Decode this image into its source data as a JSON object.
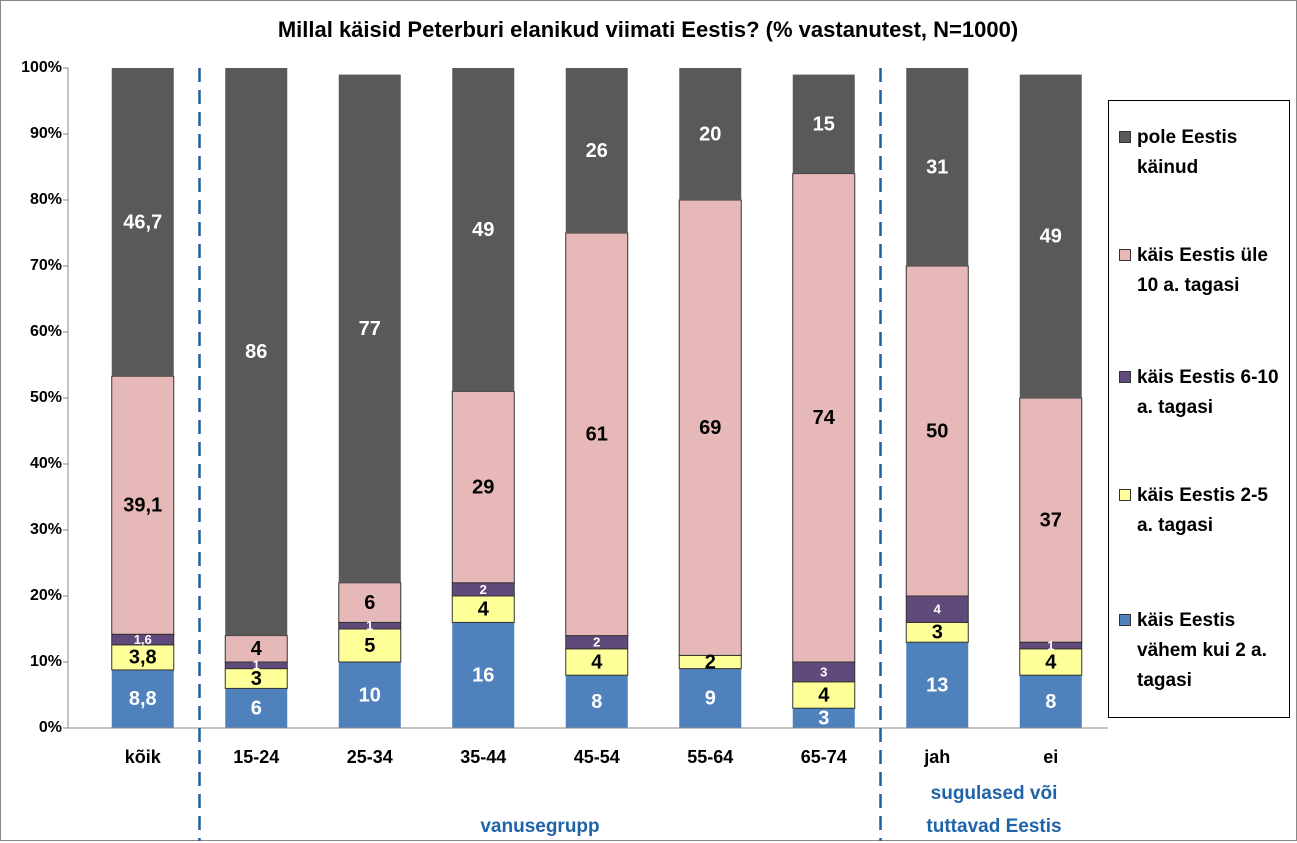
{
  "chart_data": {
    "type": "stacked_bar",
    "title": "Millal käisid Peterburi elanikud viimati Eestis? (% vastanutest, N=1000)",
    "categories": [
      "kõik",
      "15-24",
      "25-34",
      "35-44",
      "45-54",
      "55-64",
      "65-74",
      "jah",
      "ei"
    ],
    "groups": [
      {
        "label": "vanusegrupp",
        "categories": [
          1,
          6
        ]
      },
      {
        "label": "sugulased või tuttavad Eestis",
        "categories": [
          7,
          8
        ]
      }
    ],
    "series": [
      {
        "name": "käis Eestis vähem kui 2 a. tagasi",
        "color": "#4f81bd",
        "text_color": "#ffffff",
        "values": [
          8.8,
          6,
          10,
          16,
          8,
          9,
          3,
          13,
          8
        ],
        "value_labels": [
          "8,8",
          "6",
          "10",
          "16",
          "8",
          "9",
          "3",
          "13",
          "8"
        ]
      },
      {
        "name": "käis Eestis 2-5 a. tagasi",
        "color": "#ffff99",
        "text_color": "#000000",
        "values": [
          3.8,
          3,
          5,
          4,
          4,
          2,
          4,
          3,
          4
        ],
        "value_labels": [
          "3,8",
          "3",
          "5",
          "4",
          "4",
          "2",
          "4",
          "3",
          "4"
        ]
      },
      {
        "name": "käis Eestis 6-10 a. tagasi",
        "color": "#604a7b",
        "text_color": "#ffffff",
        "small": true,
        "values": [
          1.6,
          1,
          1,
          2,
          2,
          null,
          3,
          4,
          1
        ],
        "value_labels": [
          "1,6",
          "1",
          "1",
          "2",
          "2",
          null,
          "3",
          "4",
          "1"
        ]
      },
      {
        "name": "käis Eestis üle 10 a. tagasi",
        "color": "#e6b9b8",
        "text_color": "#000000",
        "values": [
          39.1,
          4,
          6,
          29,
          61,
          69,
          74,
          50,
          37
        ],
        "value_labels": [
          "39,1",
          "4",
          "6",
          "29",
          "61",
          "69",
          "74",
          "50",
          "37"
        ]
      },
      {
        "name": "pole Eestis käinud",
        "color": "#595959",
        "text_color": "#ffffff",
        "values": [
          46.7,
          86,
          77,
          49,
          26,
          20,
          15,
          31,
          49
        ],
        "value_labels": [
          "46,7",
          "86",
          "77",
          "49",
          "26",
          "20",
          "15",
          "31",
          "49"
        ]
      }
    ],
    "ylim": [
      0,
      100
    ],
    "yticks": [
      {
        "value": 0,
        "label": "0%"
      },
      {
        "value": 10,
        "label": "10%"
      },
      {
        "value": 20,
        "label": "20%"
      },
      {
        "value": 30,
        "label": "30%"
      },
      {
        "value": 40,
        "label": "40%"
      },
      {
        "value": 50,
        "label": "50%"
      },
      {
        "value": 60,
        "label": "60%"
      },
      {
        "value": 70,
        "label": "70%"
      },
      {
        "value": 80,
        "label": "80%"
      },
      {
        "value": 90,
        "label": "90%"
      },
      {
        "value": 100,
        "label": "100%"
      }
    ],
    "legend": "right"
  }
}
